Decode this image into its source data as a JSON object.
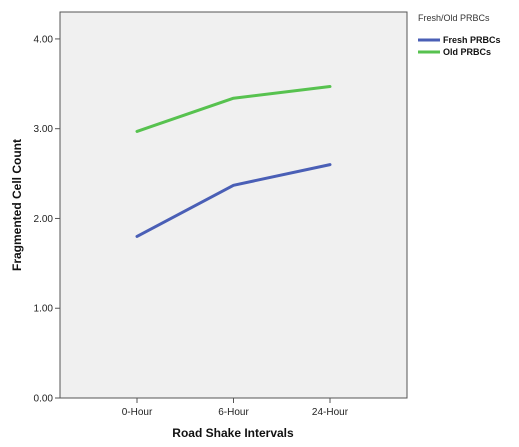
{
  "chart_data": {
    "type": "line",
    "title": "",
    "xlabel": "Road Shake Intervals",
    "ylabel": "Fragmented Cell Count",
    "categories": [
      "0-Hour",
      "6-Hour",
      "24-Hour"
    ],
    "ylim": [
      0,
      4.3
    ],
    "yticks": [
      "0.00",
      "1.00",
      "2.00",
      "3.00",
      "4.00"
    ],
    "grid": false,
    "legend": {
      "title": "Fresh/Old PRBCs",
      "position": "top-right outside"
    },
    "series": [
      {
        "name": "Fresh PRBCs",
        "values": [
          1.8,
          2.37,
          2.6
        ],
        "color": "#4a5fb6"
      },
      {
        "name": "Old PRBCs",
        "values": [
          2.97,
          3.34,
          3.47
        ],
        "color": "#57c24f"
      }
    ],
    "plot_background": "#f0f0f0"
  }
}
